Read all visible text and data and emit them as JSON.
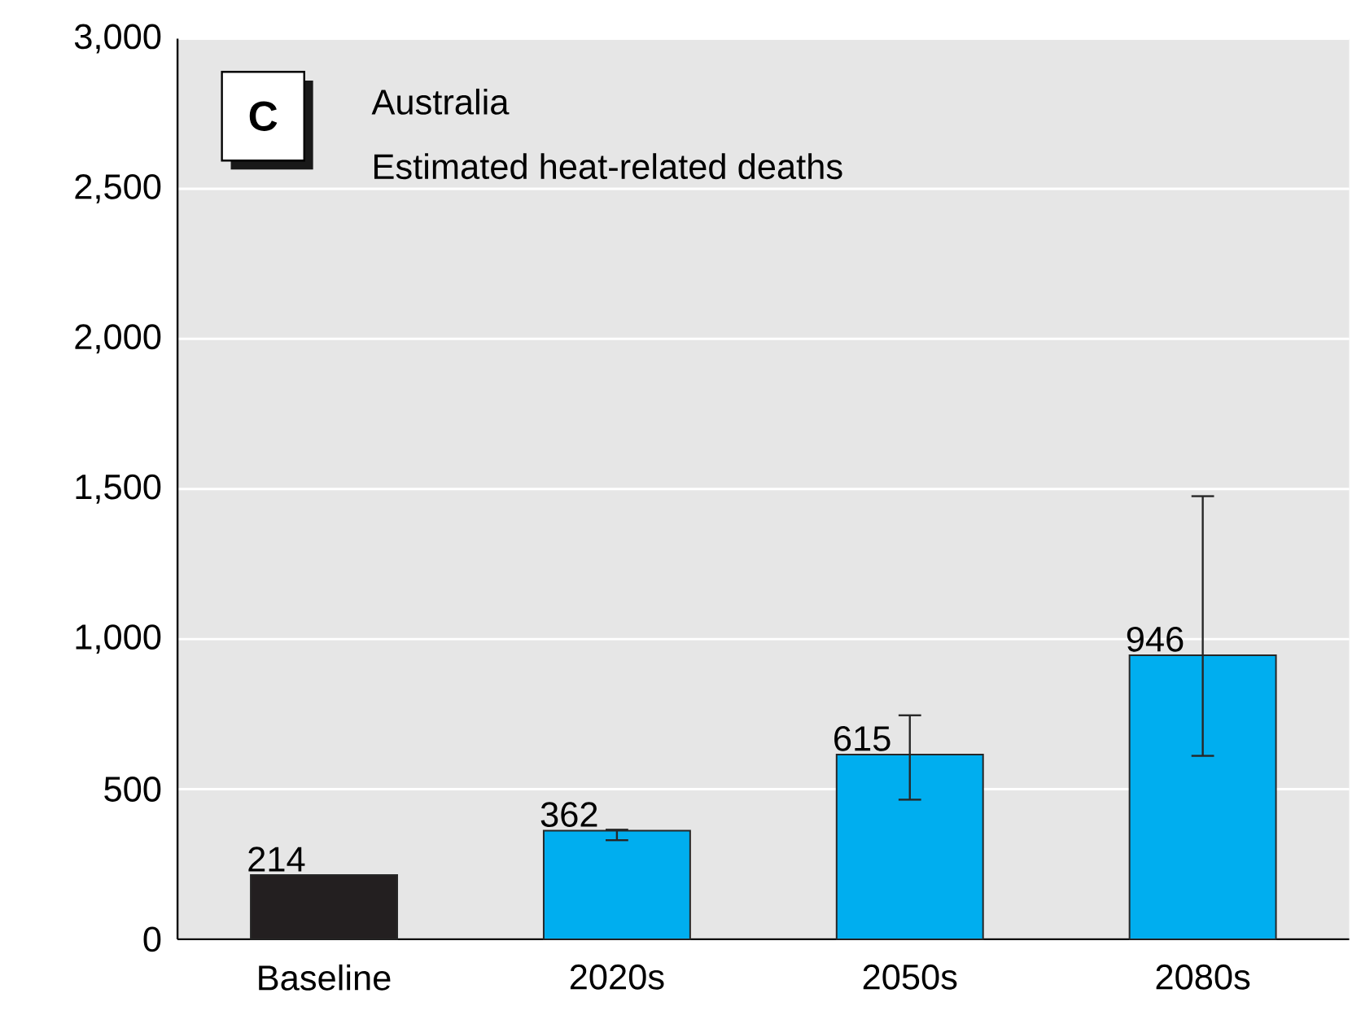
{
  "chart_data": {
    "type": "bar",
    "title": "Australia",
    "subtitle": "Estimated heat-related deaths",
    "annotations": [
      "C"
    ],
    "categories": [
      "Baseline",
      "2020s",
      "2050s",
      "2080s"
    ],
    "values": [
      214,
      362,
      615,
      946
    ],
    "colors": [
      "#231f20",
      "#00aeef",
      "#00aeef",
      "#00aeef"
    ],
    "value_labels": [
      "214",
      "362",
      "615",
      "946"
    ],
    "errors": [
      null,
      [
        330,
        365
      ],
      [
        465,
        746
      ],
      [
        611,
        1476
      ]
    ],
    "ylim": [
      0,
      3000
    ],
    "yticks": [
      0,
      500,
      {
        "value": 1000,
        "label": "1,000"
      },
      {
        "value": 1500,
        "label": "1,500"
      },
      {
        "value": 2000,
        "label": "2,000"
      },
      {
        "value": 2500,
        "label": "2,500"
      },
      {
        "value": 3000,
        "label": "3,000"
      }
    ],
    "grid": "y"
  }
}
